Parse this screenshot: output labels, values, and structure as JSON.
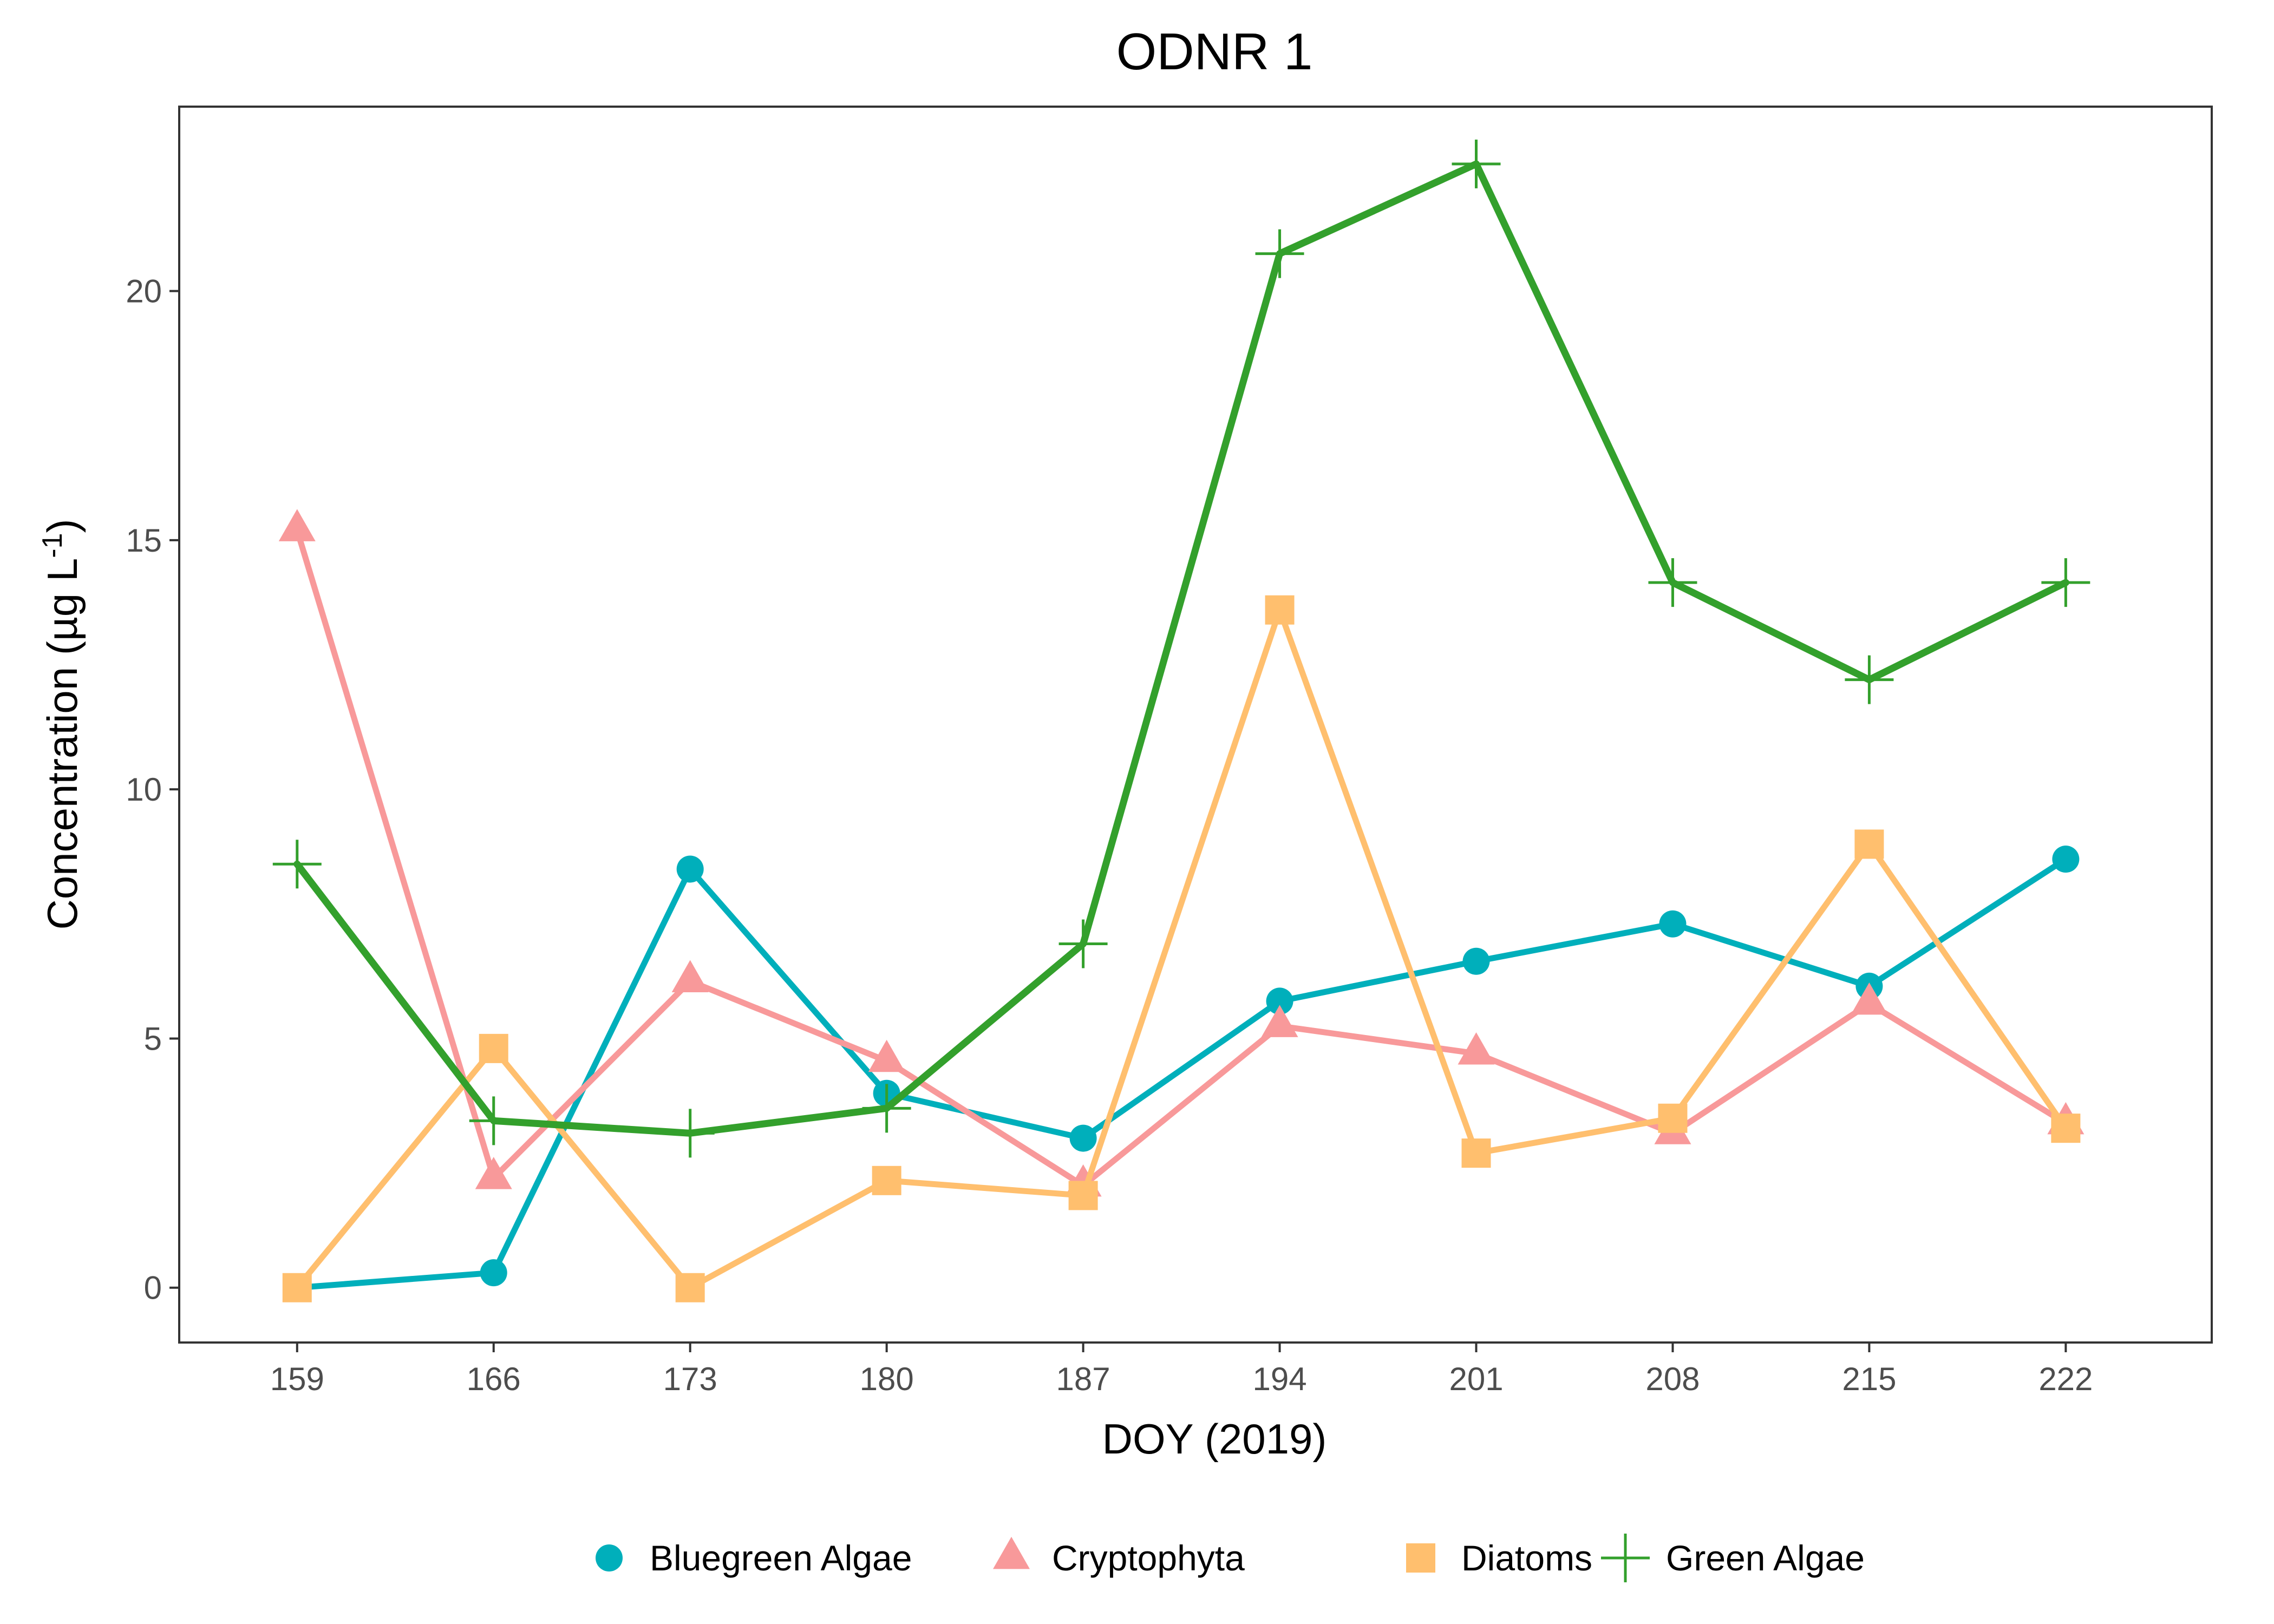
{
  "chart_data": {
    "type": "line",
    "title": "ODNR 1",
    "xlabel": "DOY (2019)",
    "ylabel_main": "Concentration (µg L",
    "ylabel_sup": "-1",
    "ylabel_close": ")",
    "x": [
      159,
      166,
      173,
      180,
      187,
      194,
      201,
      208,
      215,
      222
    ],
    "x_ticks": [
      "159",
      "166",
      "173",
      "180",
      "187",
      "194",
      "201",
      "208",
      "215",
      "222"
    ],
    "xlim": [
      154.8,
      227.2
    ],
    "y_ticks": [
      "0",
      "5",
      "10",
      "15",
      "20"
    ],
    "ylim": [
      -1.1,
      23.7
    ],
    "grid": false,
    "legend_position": "bottom",
    "series": [
      {
        "name": "Bluegreen Algae",
        "shape": "circle",
        "color": "#00AFBB",
        "values": [
          0.0,
          0.3,
          8.4,
          3.9,
          3.0,
          5.75,
          6.55,
          7.3,
          6.05,
          8.6
        ]
      },
      {
        "name": "Cryptophyta",
        "shape": "triangle",
        "color": "#F8999A",
        "values": [
          15.2,
          2.2,
          6.15,
          4.55,
          2.05,
          5.25,
          4.7,
          3.1,
          5.7,
          3.3
        ]
      },
      {
        "name": "Diatoms",
        "shape": "square",
        "color": "#FFBF6E",
        "values": [
          0.0,
          4.8,
          0.0,
          2.15,
          1.85,
          13.6,
          2.7,
          3.4,
          8.9,
          3.2
        ]
      },
      {
        "name": "Green Algae",
        "shape": "plus",
        "color": "#33A02C",
        "values": [
          8.5,
          3.35,
          3.1,
          3.6,
          6.9,
          20.75,
          22.55,
          14.15,
          12.2,
          14.15
        ]
      }
    ]
  }
}
